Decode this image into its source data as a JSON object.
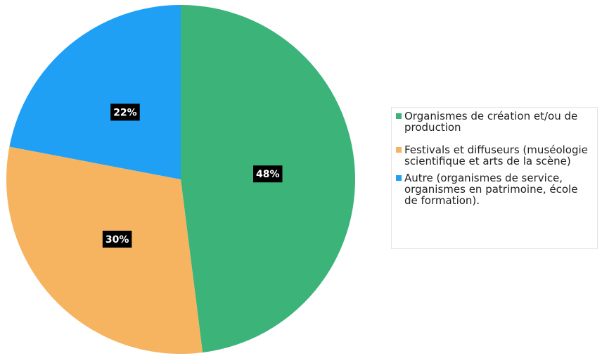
{
  "chart_data": {
    "type": "pie",
    "categories": [
      "Organismes de création et/ou de production",
      "Festivals et diffuseurs (muséologie scientifique et arts de la scène)",
      "Autre (organismes de service, organismes en patrimoine, école de formation)."
    ],
    "values": [
      48,
      30,
      22
    ],
    "value_labels": [
      "48%",
      "30%",
      "22%"
    ],
    "colors": [
      "#3cb479",
      "#f6b460",
      "#1fa0f5"
    ],
    "legend": "right"
  }
}
